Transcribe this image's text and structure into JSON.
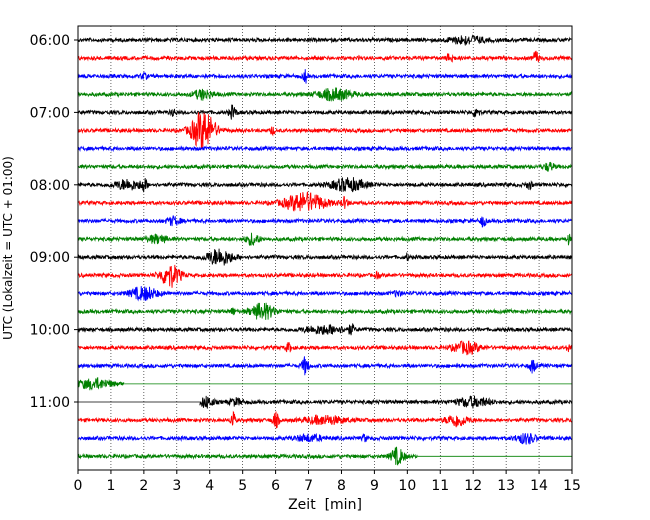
{
  "chart_data": {
    "type": "line",
    "title": "",
    "xlabel": "Zeit  [min]",
    "ylabel": "UTC (Lokalzeit = UTC + 01:00)",
    "xlim": [
      0,
      15
    ],
    "x_ticks": [
      "0",
      "1",
      "2",
      "3",
      "4",
      "5",
      "6",
      "7",
      "8",
      "9",
      "10",
      "11",
      "12",
      "13",
      "14",
      "15"
    ],
    "y_tick_labels": [
      "06:00",
      "07:00",
      "08:00",
      "09:00",
      "10:00",
      "11:00"
    ],
    "y_tick_trace_index": [
      0,
      4,
      8,
      12,
      16,
      20
    ],
    "trace_interval_min": 15,
    "grid": "vertical dotted lines at each minute",
    "colors": [
      "#000000",
      "#ff0000",
      "#0000ff",
      "#008000"
    ],
    "traces": [
      {
        "start": "06:00",
        "color": "#000000",
        "end_min": 15,
        "events": [
          [
            11.8,
            0.5,
            0.5
          ]
        ]
      },
      {
        "start": "06:15",
        "color": "#ff0000",
        "end_min": 15,
        "events": [
          [
            11.3,
            0.6,
            0.1
          ],
          [
            13.9,
            0.9,
            0.08
          ]
        ]
      },
      {
        "start": "06:30",
        "color": "#0000ff",
        "end_min": 15,
        "events": [
          [
            6.9,
            0.8,
            0.06
          ],
          [
            2.0,
            0.3,
            0.1
          ]
        ]
      },
      {
        "start": "06:45",
        "color": "#008000",
        "end_min": 15,
        "events": [
          [
            3.8,
            0.6,
            0.3
          ],
          [
            7.8,
            0.7,
            0.5
          ]
        ]
      },
      {
        "start": "07:00",
        "color": "#000000",
        "end_min": 15,
        "events": [
          [
            4.7,
            0.8,
            0.1
          ],
          [
            12.1,
            0.9,
            0.08
          ],
          [
            2.9,
            0.4,
            0.08
          ]
        ]
      },
      {
        "start": "07:15",
        "color": "#ff0000",
        "end_min": 15,
        "events": [
          [
            3.8,
            2.4,
            0.35
          ],
          [
            5.9,
            0.5,
            0.06
          ]
        ]
      },
      {
        "start": "07:30",
        "color": "#0000ff",
        "end_min": 15,
        "events": []
      },
      {
        "start": "07:45",
        "color": "#008000",
        "end_min": 15,
        "events": [
          [
            14.3,
            0.5,
            0.15
          ]
        ]
      },
      {
        "start": "08:00",
        "color": "#000000",
        "end_min": 15,
        "events": [
          [
            1.5,
            0.6,
            0.4
          ],
          [
            2.0,
            0.7,
            0.1
          ],
          [
            8.2,
            0.8,
            0.5
          ],
          [
            13.7,
            0.5,
            0.08
          ]
        ]
      },
      {
        "start": "08:15",
        "color": "#ff0000",
        "end_min": 15,
        "events": [
          [
            6.9,
            1.2,
            0.6
          ],
          [
            8.1,
            0.6,
            0.1
          ]
        ]
      },
      {
        "start": "08:30",
        "color": "#0000ff",
        "end_min": 15,
        "events": [
          [
            2.9,
            0.5,
            0.2
          ],
          [
            12.3,
            0.7,
            0.08
          ]
        ]
      },
      {
        "start": "08:45",
        "color": "#008000",
        "end_min": 15,
        "events": [
          [
            2.4,
            0.5,
            0.3
          ],
          [
            5.3,
            0.7,
            0.2
          ],
          [
            14.9,
            0.6,
            0.05
          ]
        ]
      },
      {
        "start": "09:00",
        "color": "#000000",
        "end_min": 15,
        "events": [
          [
            4.3,
            1.0,
            0.4
          ],
          [
            10.0,
            0.4,
            0.05
          ]
        ]
      },
      {
        "start": "09:15",
        "color": "#ff0000",
        "end_min": 15,
        "events": [
          [
            2.8,
            1.4,
            0.3
          ],
          [
            9.1,
            0.4,
            0.06
          ]
        ]
      },
      {
        "start": "09:30",
        "color": "#0000ff",
        "end_min": 15,
        "events": [
          [
            2.0,
            0.8,
            0.4
          ],
          [
            9.7,
            0.4,
            0.1
          ]
        ]
      },
      {
        "start": "09:45",
        "color": "#008000",
        "end_min": 15,
        "events": [
          [
            5.6,
            1.0,
            0.35
          ],
          [
            4.7,
            0.5,
            0.06
          ]
        ]
      },
      {
        "start": "10:00",
        "color": "#000000",
        "end_min": 15,
        "events": [
          [
            7.5,
            0.5,
            0.6
          ],
          [
            8.3,
            0.6,
            0.08
          ]
        ]
      },
      {
        "start": "10:15",
        "color": "#ff0000",
        "end_min": 15,
        "events": [
          [
            11.8,
            0.7,
            0.4
          ],
          [
            6.4,
            0.5,
            0.1
          ],
          [
            14.9,
            0.5,
            0.06
          ]
        ]
      },
      {
        "start": "10:30",
        "color": "#0000ff",
        "end_min": 15,
        "events": [
          [
            6.9,
            1.1,
            0.1
          ],
          [
            13.8,
            0.8,
            0.1
          ]
        ]
      },
      {
        "start": "10:45",
        "color": "#008000",
        "end_min": 1.4,
        "events": [
          [
            0.5,
            0.6,
            0.5
          ]
        ]
      },
      {
        "start": "11:00",
        "color": "#000000",
        "end_min": 15,
        "start_min": 3.7,
        "events": [
          [
            3.9,
            0.7,
            0.2
          ],
          [
            4.8,
            0.4,
            0.2
          ],
          [
            12.0,
            0.6,
            0.5
          ]
        ]
      },
      {
        "start": "11:15",
        "color": "#ff0000",
        "end_min": 15,
        "events": [
          [
            4.7,
            1.3,
            0.06
          ],
          [
            6.0,
            0.9,
            0.1
          ],
          [
            7.5,
            0.5,
            0.6
          ],
          [
            11.5,
            0.8,
            0.3
          ]
        ]
      },
      {
        "start": "11:30",
        "color": "#0000ff",
        "end_min": 15,
        "events": [
          [
            8.7,
            0.5,
            0.06
          ],
          [
            13.6,
            0.6,
            0.3
          ],
          [
            7.0,
            0.4,
            0.4
          ]
        ]
      },
      {
        "start": "11:45",
        "color": "#008000",
        "end_min": 10.3,
        "events": [
          [
            9.7,
            1.0,
            0.2
          ]
        ]
      }
    ]
  }
}
